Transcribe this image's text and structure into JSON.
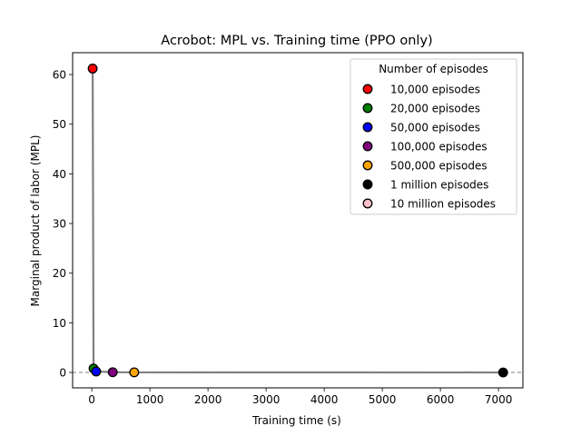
{
  "chart_data": {
    "type": "scatter",
    "title": "Acrobot: MPL vs. Training time (PPO only)",
    "xlabel": "Training time (s)",
    "ylabel": "Marginal product of labor (MPL)",
    "xlim": [
      -330,
      7420
    ],
    "ylim": [
      -3.1,
      64.4
    ],
    "xticks": [
      0,
      1000,
      2000,
      3000,
      4000,
      5000,
      6000,
      7000
    ],
    "yticks": [
      0,
      10,
      20,
      30,
      40,
      50,
      60
    ],
    "grid": false,
    "reference_line": {
      "y": 0,
      "style": "dashed",
      "color": "#808080"
    },
    "line_color": "#808080",
    "legend": {
      "title": "Number of episodes",
      "position": "top-right"
    },
    "series": [
      {
        "name": "10,000 episodes",
        "color": "#ff0000",
        "x": [
          15
        ],
        "y": [
          61.2
        ]
      },
      {
        "name": "20,000 episodes",
        "color": "#008000",
        "x": [
          30
        ],
        "y": [
          0.8
        ]
      },
      {
        "name": "50,000 episodes",
        "color": "#0000ff",
        "x": [
          75
        ],
        "y": [
          0.2
        ]
      },
      {
        "name": "100,000 episodes",
        "color": "#800080",
        "x": [
          360
        ],
        "y": [
          0.05
        ]
      },
      {
        "name": "500,000 episodes",
        "color": "#ffa500",
        "x": [
          730
        ],
        "y": [
          0.02
        ]
      },
      {
        "name": "1 million episodes",
        "color": "#000000",
        "x": [
          7080
        ],
        "y": [
          0.0
        ]
      },
      {
        "name": "10 million episodes",
        "color": "#ffc0cb",
        "x": [],
        "y": []
      }
    ]
  }
}
